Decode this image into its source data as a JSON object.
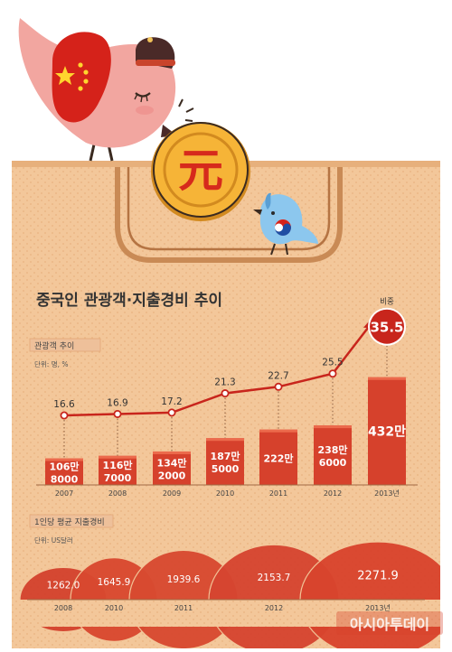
{
  "title": "중국인 관광객·지출경비 추이",
  "coin_symbol": "元",
  "colors": {
    "bag": "#f3c79a",
    "bag_pattern": "#e9b381",
    "bar": "#d6412c",
    "bar_highlight": "#ec6a4c",
    "line": "#c8251c",
    "text_dark": "#333333",
    "bird_pink": "#f2a6a0",
    "flag_red": "#d5221a",
    "coin_gold": "#f6b437"
  },
  "panels": {
    "tourists": {
      "label": "관광객 추이",
      "unit": "단위: 명, %"
    },
    "spending": {
      "label": "1인당 평균 지출경비",
      "unit": "단위: US달러"
    }
  },
  "source": "아시아투데이",
  "icons": [
    "china-bird-icon",
    "korea-bird-icon",
    "yuan-coin-icon"
  ],
  "chart_data": [
    {
      "type": "bar",
      "name": "tourists",
      "categories": [
        "2007",
        "2008",
        "2009",
        "2010",
        "2011",
        "2012",
        "2013년"
      ],
      "values": [
        1068000,
        1167000,
        1342000,
        1875000,
        2220000,
        2386000,
        4320000
      ],
      "value_labels": [
        [
          "106만",
          "8000"
        ],
        [
          "116만",
          "7000"
        ],
        [
          "134만",
          "2000"
        ],
        [
          "187만",
          "5000"
        ],
        [
          "222만"
        ],
        [
          "238만",
          "6000"
        ],
        [
          "432만"
        ]
      ],
      "ylim": [
        0,
        4600000
      ],
      "line": {
        "legend": "비중",
        "values": [
          16.6,
          16.9,
          17.2,
          21.3,
          22.7,
          25.5,
          35.5
        ],
        "labels": [
          "16.6",
          "16.9",
          "17.2",
          "21.3",
          "22.7",
          "25.5",
          "35.5"
        ]
      }
    },
    {
      "type": "area",
      "name": "spending",
      "categories": [
        "2008",
        "2010",
        "2011",
        "2012",
        "2013년"
      ],
      "values": [
        1262.0,
        1645.9,
        1939.6,
        2153.7,
        2271.9
      ],
      "labels": [
        "1262.0",
        "1645.9",
        "1939.6",
        "2153.7",
        "2271.9"
      ]
    }
  ]
}
